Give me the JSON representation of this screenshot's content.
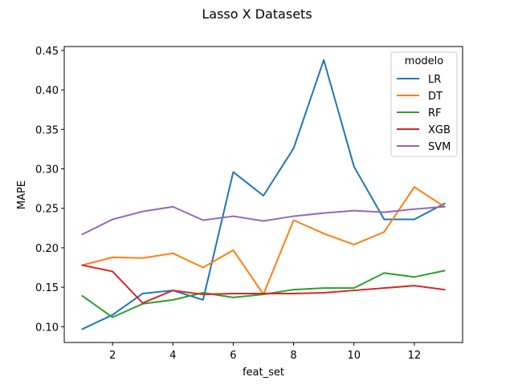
{
  "chart_data": {
    "type": "line",
    "title": "Lasso X Datasets",
    "xlabel": "feat_set",
    "ylabel": "MAPE",
    "x": [
      1,
      2,
      3,
      4,
      5,
      6,
      7,
      8,
      9,
      10,
      11,
      12,
      13
    ],
    "xlim": [
      0.4,
      13.6
    ],
    "ylim": [
      0.08,
      0.455
    ],
    "xticks": [
      2,
      4,
      6,
      8,
      10,
      12
    ],
    "yticks": [
      0.1,
      0.15,
      0.2,
      0.25,
      0.3,
      0.35,
      0.4,
      0.45
    ],
    "ytick_labels": [
      "0.10",
      "0.15",
      "0.20",
      "0.25",
      "0.30",
      "0.35",
      "0.40",
      "0.45"
    ],
    "grid": false,
    "legend": {
      "title": "modelo",
      "placement": "top-right"
    },
    "series": [
      {
        "name": "LR",
        "color": "#1f77b4",
        "values": [
          0.097,
          0.115,
          0.142,
          0.146,
          0.134,
          0.296,
          0.266,
          0.326,
          0.438,
          0.303,
          0.236,
          0.236,
          0.256
        ]
      },
      {
        "name": "DT",
        "color": "#ff7f0e",
        "values": [
          0.178,
          0.188,
          0.187,
          0.193,
          0.175,
          0.197,
          0.141,
          0.235,
          0.218,
          0.204,
          0.22,
          0.277,
          0.252
        ]
      },
      {
        "name": "RF",
        "color": "#2ca02c",
        "values": [
          0.139,
          0.112,
          0.129,
          0.134,
          0.143,
          0.137,
          0.141,
          0.147,
          0.149,
          0.149,
          0.168,
          0.163,
          0.171
        ]
      },
      {
        "name": "XGB",
        "color": "#d62728",
        "values": [
          0.178,
          0.17,
          0.13,
          0.146,
          0.141,
          0.142,
          0.142,
          0.142,
          0.143,
          0.146,
          0.149,
          0.152,
          0.147
        ]
      },
      {
        "name": "SVM",
        "color": "#9467bd",
        "values": [
          0.217,
          0.236,
          0.246,
          0.252,
          0.235,
          0.24,
          0.234,
          0.24,
          0.244,
          0.247,
          0.245,
          0.249,
          0.252
        ]
      }
    ]
  }
}
